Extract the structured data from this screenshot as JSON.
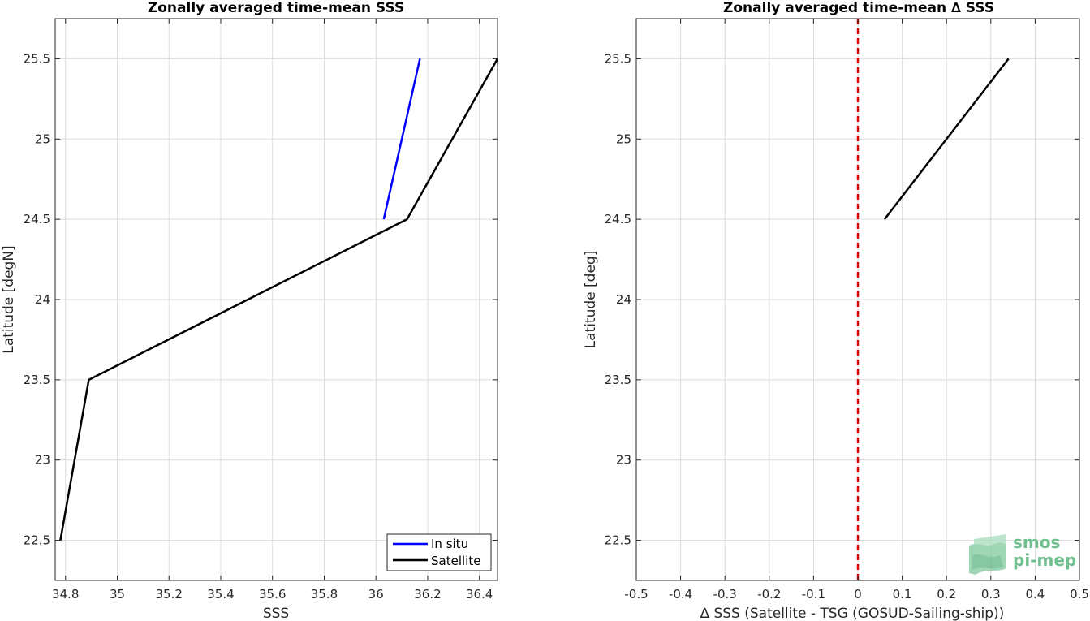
{
  "chart_data": [
    {
      "type": "line",
      "title": "Zonally averaged time-mean SSS",
      "xlabel": "SSS",
      "ylabel": "Latitude [degN]",
      "xlim": [
        34.76,
        36.47
      ],
      "ylim": [
        22.25,
        25.75
      ],
      "xticks": [
        34.8,
        35,
        35.2,
        35.4,
        35.6,
        35.8,
        36,
        36.2,
        36.4
      ],
      "xtick_labels": [
        "34.8",
        "35",
        "35.2",
        "35.4",
        "35.6",
        "35.8",
        "36",
        "36.2",
        "36.4"
      ],
      "yticks": [
        22.5,
        23,
        23.5,
        24,
        24.5,
        25,
        25.5
      ],
      "ytick_labels": [
        "22.5",
        "23",
        "23.5",
        "24",
        "24.5",
        "25",
        "25.5"
      ],
      "grid": true,
      "legend_position": "bottom-right",
      "series": [
        {
          "name": "In situ",
          "color": "#0000ff",
          "x": [
            36.03,
            36.17
          ],
          "y": [
            24.5,
            25.5
          ]
        },
        {
          "name": "Satellite",
          "color": "#000000",
          "x": [
            34.78,
            34.89,
            36.12,
            36.47
          ],
          "y": [
            22.5,
            23.5,
            24.5,
            25.5
          ]
        }
      ]
    },
    {
      "type": "line",
      "title": "Zonally averaged time-mean ∆ SSS",
      "xlabel": "∆ SSS (Satellite - TSG (GOSUD-Sailing-ship))",
      "ylabel": "Latitude [deg]",
      "xlim": [
        -0.5,
        0.5
      ],
      "ylim": [
        22.25,
        25.75
      ],
      "xticks": [
        -0.5,
        -0.4,
        -0.3,
        -0.2,
        -0.1,
        0,
        0.1,
        0.2,
        0.3,
        0.4,
        0.5
      ],
      "xtick_labels": [
        "-0.5",
        "-0.4",
        "-0.3",
        "-0.2",
        "-0.1",
        "0",
        "0.1",
        "0.2",
        "0.3",
        "0.4",
        "0.5"
      ],
      "yticks": [
        22.5,
        23,
        23.5,
        24,
        24.5,
        25,
        25.5
      ],
      "ytick_labels": [
        "22.5",
        "23",
        "23.5",
        "24",
        "24.5",
        "25",
        "25.5"
      ],
      "grid": true,
      "reference_line": {
        "x": 0,
        "color": "#e00000",
        "style": "dashed"
      },
      "series": [
        {
          "color": "#000000",
          "x": [
            0.06,
            0.34
          ],
          "y": [
            24.5,
            25.5
          ]
        }
      ]
    }
  ],
  "logo": {
    "line1": "smos",
    "line2": "pi-mep",
    "color": "#6fbf8f"
  }
}
